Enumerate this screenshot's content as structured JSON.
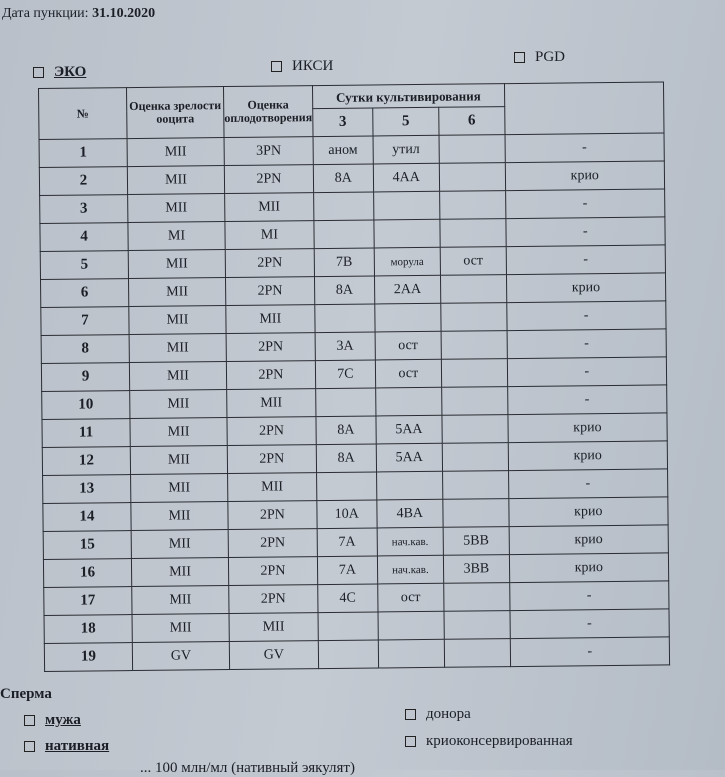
{
  "header": {
    "date_label": "Дата пункции:",
    "date_value": "31.10.2020"
  },
  "methods": [
    {
      "label": "ЭКО",
      "checked": false
    },
    {
      "label": "ИКСИ",
      "checked": false
    },
    {
      "label": "PGD",
      "checked": false
    }
  ],
  "table": {
    "columns": {
      "num": "№",
      "maturity": "Оценка зрелости ооцита",
      "fertilization": "Оценка оплодотворения",
      "days": "Сутки культивирования",
      "day3": "3",
      "day5": "5",
      "day6": "6",
      "result": ""
    },
    "rows": [
      [
        "1",
        "MII",
        "3PN",
        "аном",
        "утил",
        "",
        "-"
      ],
      [
        "2",
        "MII",
        "2PN",
        "8A",
        "4AA",
        "",
        "крио"
      ],
      [
        "3",
        "MII",
        "MII",
        "",
        "",
        "",
        "-"
      ],
      [
        "4",
        "MI",
        "MI",
        "",
        "",
        "",
        "-"
      ],
      [
        "5",
        "MII",
        "2PN",
        "7B",
        "морула",
        "ост",
        "-"
      ],
      [
        "6",
        "MII",
        "2PN",
        "8A",
        "2AA",
        "",
        "крио"
      ],
      [
        "7",
        "MII",
        "MII",
        "",
        "",
        "",
        "-"
      ],
      [
        "8",
        "MII",
        "2PN",
        "3A",
        "ост",
        "",
        "-"
      ],
      [
        "9",
        "MII",
        "2PN",
        "7C",
        "ост",
        "",
        "-"
      ],
      [
        "10",
        "MII",
        "MII",
        "",
        "",
        "",
        "-"
      ],
      [
        "11",
        "MII",
        "2PN",
        "8A",
        "5AA",
        "",
        "крио"
      ],
      [
        "12",
        "MII",
        "2PN",
        "8A",
        "5AA",
        "",
        "крио"
      ],
      [
        "13",
        "MII",
        "MII",
        "",
        "",
        "",
        "-"
      ],
      [
        "14",
        "MII",
        "2PN",
        "10A",
        "4BA",
        "",
        "крио"
      ],
      [
        "15",
        "MII",
        "2PN",
        "7A",
        "нач.кав.",
        "5BB",
        "крио"
      ],
      [
        "16",
        "MII",
        "2PN",
        "7A",
        "нач.кав.",
        "3BB",
        "крио"
      ],
      [
        "17",
        "MII",
        "2PN",
        "4C",
        "ост",
        "",
        "-"
      ],
      [
        "18",
        "MII",
        "MII",
        "",
        "",
        "",
        "-"
      ],
      [
        "19",
        "GV",
        "GV",
        "",
        "",
        "",
        "-"
      ]
    ]
  },
  "sperm": {
    "title": "Сперма",
    "options": [
      {
        "label": "мужа"
      },
      {
        "label": "донора"
      },
      {
        "label": "нативная"
      },
      {
        "label": "криоконсервированная"
      }
    ],
    "partial_line": "... 100 млн/мл  (нативный эякулят)"
  }
}
